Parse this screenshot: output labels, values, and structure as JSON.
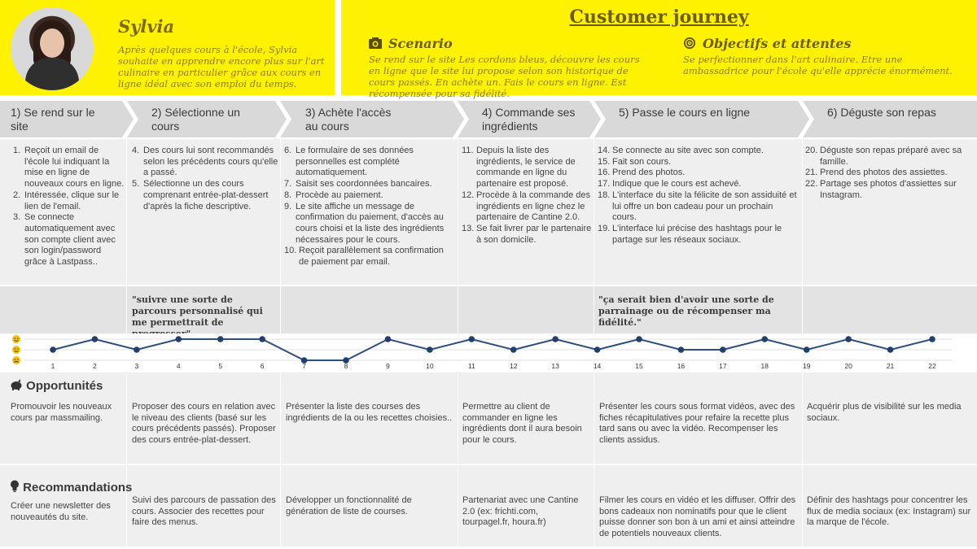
{
  "persona": {
    "name": "Sylvia",
    "description": "Après quelques cours à l'école, Sylvia souhaite en apprendre encore plus sur l'art culinaire en particulier grâce aux cours en ligne idéal avec son emploi du temps."
  },
  "journey": {
    "title": "Customer journey",
    "scenario_title": "Scenario",
    "scenario_text": "Se rend sur le site Les cordons bleus, découvre les cours en ligne que le site lui propose selon son historique de cours passés. En achète un. Fais le cours en ligne. Est récompensée pour sa fidélité.",
    "objectives_title": "Objectifs et attentes",
    "objectives_text": "Se perfectionner dans l'art culinaire. Etre une ambassadrice pour l'école qu'elle apprécie énormément."
  },
  "steps": [
    {
      "label": "1) Se rend sur le site"
    },
    {
      "label": "2) Sélectionne un cours"
    },
    {
      "label": "3) Achète l'accès au cours"
    },
    {
      "label": "4) Commande ses ingrédients"
    },
    {
      "label": "5) Passe le cours en ligne"
    },
    {
      "label": "6) Déguste son repas"
    }
  ],
  "actions": [
    [
      "Reçoit un email de l'école lui indiquant la mise en ligne de nouveaux cours en ligne.",
      "Intéressée, clique sur le lien de l'email.",
      "Se connecte automatiquement avec son compte client avec son login/password grâce à Lastpass.."
    ],
    [
      "Des cours lui sont recommandés selon les précédents cours qu'elle a passé.",
      "Sélectionne un des cours comprenant entrée-plat-dessert d'après la fiche descriptive."
    ],
    [
      "Le formulaire de ses données personnelles est complété automatiquement.",
      "Saisit ses coordonnées bancaires.",
      "Procède au paiement.",
      "Le site affiche un message de confirmation du paiement, d'accès au cours choisi et la liste des ingrédients nécessaires pour le cours.",
      "Reçoit parallèlement sa confirmation de paiement par email."
    ],
    [
      "Depuis la liste des ingrédients, le service de commande en ligne du partenaire est proposé.",
      "Procède à la commande des ingrédients en ligne chez le partenaire de Cantine 2.0.",
      "Se fait livrer par le partenaire à son domicile."
    ],
    [
      "Se connecte au site avec son compte.",
      "Fait son cours.",
      "Prend des photos.",
      "Indique que le cours est achevé.",
      "L'interface du site la félicite de son assiduité et lui offre un bon cadeau pour un prochain cours.",
      "L'interface lui précise des hashtags pour le partage sur les réseaux sociaux."
    ],
    [
      "Déguste son repas préparé avec sa famille.",
      "Prend des photos des assiettes.",
      "Partage ses photos d'assiettes sur Instagram."
    ]
  ],
  "quotes": {
    "q1": "\"suivre une sorte de parcours personnalisé qui me permettrait de progresser\"",
    "q2": "\"ça serait bien d'avoir une sorte de parrainage ou de récompenser ma fidélité.\""
  },
  "chart_data": {
    "type": "line",
    "x": [
      1,
      2,
      3,
      4,
      5,
      6,
      7,
      8,
      9,
      10,
      11,
      12,
      13,
      14,
      15,
      16,
      17,
      18,
      19,
      20,
      21,
      22
    ],
    "series": [
      {
        "values": [
          2,
          3,
          2,
          3,
          3,
          3,
          1,
          1,
          3,
          2,
          3,
          2,
          3,
          2,
          3,
          2,
          2,
          3,
          2,
          3,
          2,
          3
        ]
      }
    ],
    "ylim": [
      1,
      3
    ],
    "grid": true,
    "colors": {
      "line": "#2d4f7c",
      "marker": "#1f3f6e"
    }
  },
  "opportunities": {
    "title": "Opportunités",
    "items": [
      "Promouvoir les nouveaux cours par massmailing.",
      "Proposer des cours en relation avec le niveau des clients (basé sur les cours précédents passés). Proposer des cours entrée-plat-dessert.",
      "Présenter la liste des courses des ingrédients de la ou les recettes choisies..",
      "Permettre au client de commander en ligne les ingrédients dont il aura besoin pour le cours.",
      "Présenter les cours sous format vidéos, avec des fiches récapitulatives pour refaire la recette plus tard sans ou avec la vidéo. Recompenser les clients assidus.",
      "Acquérir plus de visibilité sur les media sociaux."
    ]
  },
  "recommendations": {
    "title": "Recommandations",
    "items": [
      "Créer une newsletter des nouveautés du site.",
      "Suivi des parcours de passation des cours. Associer des recettes pour faire des menus.",
      "Développer un fonctionnalité de génération de liste de courses.",
      "Partenariat avec une Cantine 2.0 (ex: frichti.com, tourpagel.fr, houra.fr)",
      "Filmer les cours en vidéo et les diffuser. Offrir des bons cadeaux non nominatifs pour que le client puisse donner son bon à un ami et ainsi atteindre de potentiels nouveaux clients.",
      "Définir des hashtags pour concentrer les flux de media sociaux (ex: Instagram) sur la marque de l'école."
    ]
  }
}
